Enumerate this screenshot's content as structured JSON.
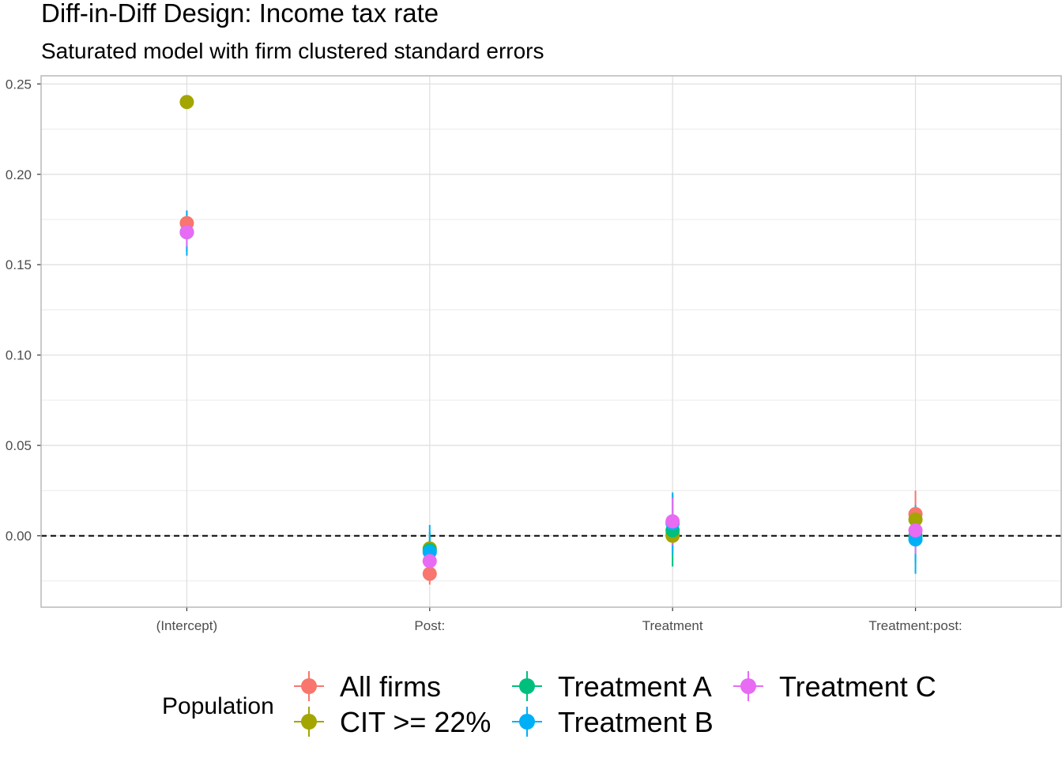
{
  "chart_data": {
    "type": "scatter",
    "title": "Diff-in-Diff Design: Income tax rate",
    "subtitle": "Saturated model with firm clustered standard errors",
    "xlabel": "",
    "ylabel": "",
    "categories": [
      "(Intercept)",
      "Post:",
      "Treatment",
      "Treatment:post:"
    ],
    "ylim": [
      -0.0395,
      0.2545
    ],
    "yticks": [
      0.0,
      0.05,
      0.1,
      0.15,
      0.2,
      0.25
    ],
    "ytick_labels": [
      "0.00",
      "0.05",
      "0.10",
      "0.15",
      "0.20",
      "0.25"
    ],
    "grid": true,
    "reference_line": {
      "y": 0,
      "style": "dashed",
      "color": "#000000"
    },
    "legend": {
      "title": "Population",
      "position": "bottom"
    },
    "series": [
      {
        "name": "All firms",
        "color": "#F8766D",
        "points": [
          {
            "est": 0.173,
            "lo": 0.166,
            "hi": 0.18
          },
          {
            "est": -0.021,
            "lo": -0.027,
            "hi": -0.015
          },
          {
            "est": 0.001,
            "lo": -0.004,
            "hi": 0.006
          },
          {
            "est": 0.012,
            "lo": 0.0,
            "hi": 0.025
          }
        ]
      },
      {
        "name": "CIT >= 22%",
        "color": "#A3A500",
        "points": [
          {
            "est": 0.24,
            "lo": 0.238,
            "hi": 0.242
          },
          {
            "est": -0.007,
            "lo": -0.012,
            "hi": -0.002
          },
          {
            "est": 0.0,
            "lo": -0.004,
            "hi": 0.004
          },
          {
            "est": 0.009,
            "lo": 0.004,
            "hi": 0.014
          }
        ]
      },
      {
        "name": "Treatment A",
        "color": "#00BF7D",
        "points": [
          {
            "est": 0.168,
            "lo": 0.157,
            "hi": 0.179
          },
          {
            "est": -0.008,
            "lo": -0.018,
            "hi": 0.002
          },
          {
            "est": 0.003,
            "lo": -0.017,
            "hi": 0.023
          },
          {
            "est": 0.0,
            "lo": -0.015,
            "hi": 0.015
          }
        ]
      },
      {
        "name": "Treatment B",
        "color": "#00B0F6",
        "points": [
          {
            "est": 0.168,
            "lo": 0.155,
            "hi": 0.18
          },
          {
            "est": -0.009,
            "lo": -0.024,
            "hi": 0.006
          },
          {
            "est": 0.007,
            "lo": -0.01,
            "hi": 0.024
          },
          {
            "est": -0.002,
            "lo": -0.021,
            "hi": 0.017
          }
        ]
      },
      {
        "name": "Treatment C",
        "color": "#E76BF3",
        "points": [
          {
            "est": 0.168,
            "lo": 0.16,
            "hi": 0.176
          },
          {
            "est": -0.014,
            "lo": -0.02,
            "hi": -0.008
          },
          {
            "est": 0.008,
            "lo": -0.005,
            "hi": 0.021
          },
          {
            "est": 0.003,
            "lo": -0.01,
            "hi": 0.016
          }
        ]
      }
    ]
  }
}
